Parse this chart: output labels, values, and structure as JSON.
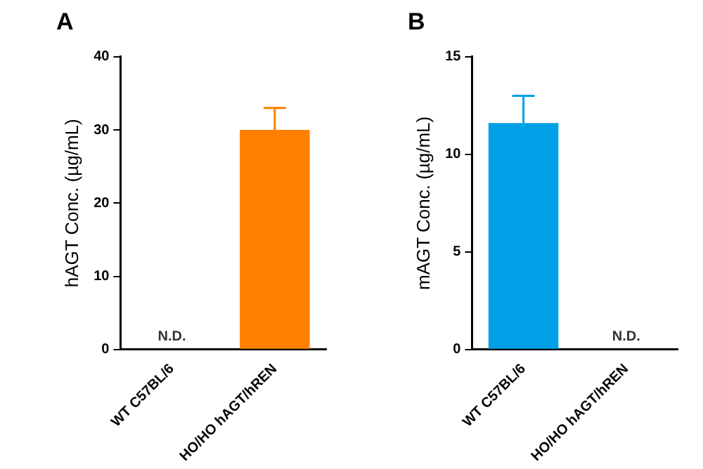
{
  "chart_data": [
    {
      "type": "bar",
      "title": "A",
      "ylabel": "hAGT Conc. (µg/mL)",
      "categories": [
        "WT C57BL/6",
        "HO/HO hAGT/hREN"
      ],
      "values": [
        null,
        30
      ],
      "errors": [
        null,
        [
          30,
          33
        ]
      ],
      "color": "#ff8000",
      "ylim": [
        0,
        40
      ],
      "yticks": [
        0,
        10,
        20,
        30,
        40
      ],
      "grid": false,
      "legend": false,
      "value_labels": [
        "N.D.",
        null
      ]
    },
    {
      "type": "bar",
      "title": "B",
      "ylabel": "mAGT Conc. (µg/mL)",
      "categories": [
        "WT C57BL/6",
        "HO/HO hAGT/hREN"
      ],
      "values": [
        11.6,
        null
      ],
      "errors": [
        [
          11.6,
          13
        ],
        null
      ],
      "color": "#00a0e6",
      "ylim": [
        0,
        15
      ],
      "yticks": [
        0,
        5,
        10,
        15
      ],
      "grid": false,
      "legend": false,
      "value_labels": [
        null,
        "N.D."
      ]
    }
  ]
}
